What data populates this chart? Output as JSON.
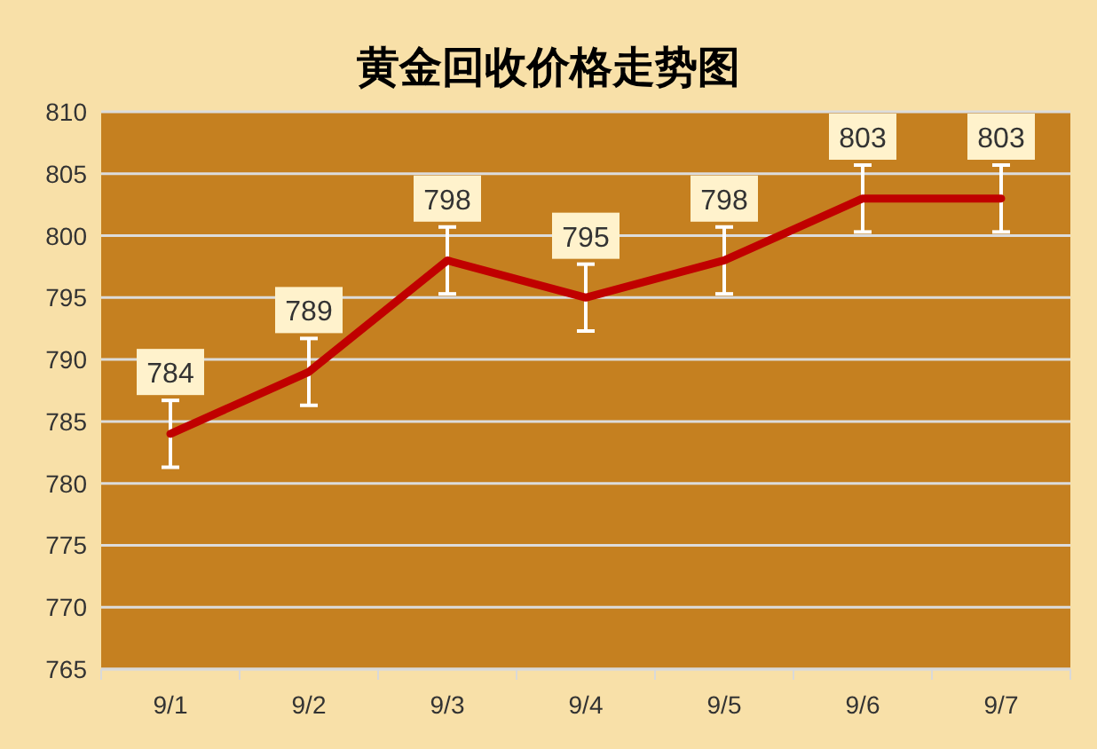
{
  "chart_data": {
    "type": "line",
    "title": "黄金回收价格走势图",
    "categories": [
      "9/1",
      "9/2",
      "9/3",
      "9/4",
      "9/5",
      "9/6",
      "9/7"
    ],
    "values": [
      784,
      789,
      798,
      795,
      798,
      803,
      803
    ],
    "errors": [
      2.7,
      2.7,
      2.7,
      2.7,
      2.7,
      2.7,
      2.7
    ],
    "color": "#c00000",
    "ylim": [
      765,
      810
    ],
    "yticks": [
      765,
      770,
      775,
      780,
      785,
      790,
      795,
      800,
      805,
      810
    ],
    "grid": "y",
    "data_labels": true
  }
}
